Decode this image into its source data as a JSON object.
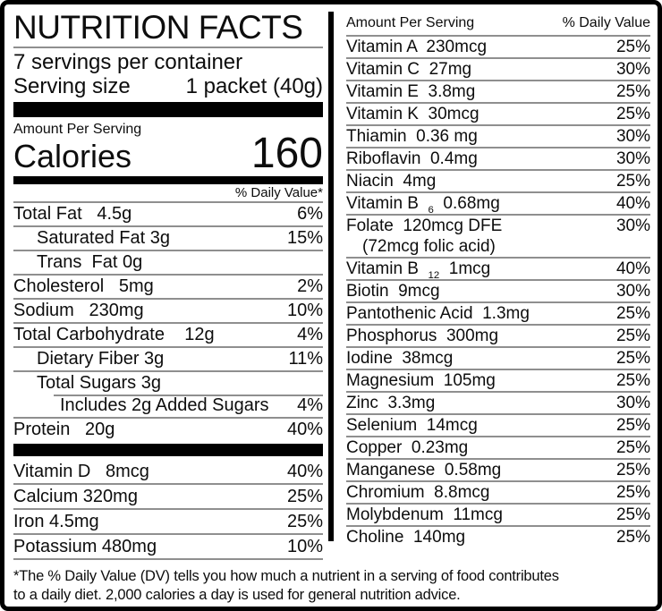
{
  "colors": {
    "border": "#000000",
    "rule": "#8f8f8f",
    "bar": "#000000",
    "text": "#0d0d0d"
  },
  "left": {
    "title": "NUTRITION FACTS",
    "servings_per_container": "7 servings per container",
    "serving_size_label": "Serving size",
    "serving_size_value": "1 packet (40g)",
    "amount_per_serving": "Amount Per Serving",
    "calories_label": "Calories",
    "calories_value": "160",
    "daily_value_header": "% Daily Value*",
    "rows": [
      {
        "label": "Total Fat   4.5g",
        "dv": "6%",
        "indent": 0
      },
      {
        "label": "Saturated Fat 3g",
        "dv": "15%",
        "indent": 1
      },
      {
        "label": "Trans  Fat 0g",
        "dv": "",
        "indent": 1
      },
      {
        "label": "Cholesterol   5mg",
        "dv": "2%",
        "indent": 0
      },
      {
        "label": "Sodium   230mg",
        "dv": "10%",
        "indent": 0
      },
      {
        "label": "Total Carbohydrate    12g",
        "dv": "4%",
        "indent": 0
      },
      {
        "label": "Dietary Fiber 3g",
        "dv": "11%",
        "indent": 1
      },
      {
        "label": "Total Sugars 3g",
        "dv": "",
        "indent": 1
      },
      {
        "label": "Includes 2g Added Sugars",
        "dv": "4%",
        "indent": 2,
        "rule_indent": true
      },
      {
        "label": "Protein   20g",
        "dv": "40%",
        "indent": 0
      }
    ],
    "vitamin_rows": [
      {
        "label": "Vitamin D   8mcg",
        "dv": "40%"
      },
      {
        "label": "Calcium 320mg",
        "dv": "25%"
      },
      {
        "label": "Iron 4.5mg",
        "dv": "25%"
      },
      {
        "label": "Potassium 480mg",
        "dv": "10%"
      }
    ]
  },
  "right": {
    "header_amount": "Amount Per Serving",
    "header_dv": "% Daily Value",
    "rows": [
      {
        "label": "Vitamin A  230mcg",
        "dv": "25%"
      },
      {
        "label": "Vitamin C  27mg",
        "dv": "30%"
      },
      {
        "label": "Vitamin E  3.8mg",
        "dv": "25%"
      },
      {
        "label": "Vitamin K  30mcg",
        "dv": "25%"
      },
      {
        "label": "Thiamin  0.36 mg",
        "dv": "30%"
      },
      {
        "label": "Riboflavin  0.4mg",
        "dv": "30%"
      },
      {
        "label": "Niacin  4mg",
        "dv": "25%"
      },
      {
        "label": "Vitamin B  ",
        "sub": "6",
        "rest": "  0.68mg",
        "dv": "40%"
      },
      {
        "label": "Folate  120mcg DFE",
        "label2": "(72mcg folic acid)",
        "dv": "30%"
      },
      {
        "label": "Vitamin B  ",
        "sub": "12",
        "rest": "  1mcg",
        "dv": "40%"
      },
      {
        "label": "Biotin  9mcg",
        "dv": "30%"
      },
      {
        "label": "Pantothenic Acid  1.3mg",
        "dv": "25%"
      },
      {
        "label": "Phosphorus  300mg",
        "dv": "25%"
      },
      {
        "label": "Iodine  38mcg",
        "dv": "25%"
      },
      {
        "label": "Magnesium  105mg",
        "dv": "25%"
      },
      {
        "label": "Zinc  3.3mg",
        "dv": "30%"
      },
      {
        "label": "Selenium  14mcg",
        "dv": "25%"
      },
      {
        "label": "Copper  0.23mg",
        "dv": "25%"
      },
      {
        "label": "Manganese  0.58mg",
        "dv": "25%"
      },
      {
        "label": "Chromium  8.8mcg",
        "dv": "25%"
      },
      {
        "label": "Molybdenum  11mcg",
        "dv": "25%"
      },
      {
        "label": "Choline  140mg",
        "dv": "25%"
      }
    ]
  },
  "footnote": {
    "line1": "*The % Daily Value (DV) tells you how much a nutrient in a serving of food contributes",
    "line2": "to a daily diet. 2,000 calories a day is used for general nutrition advice."
  }
}
